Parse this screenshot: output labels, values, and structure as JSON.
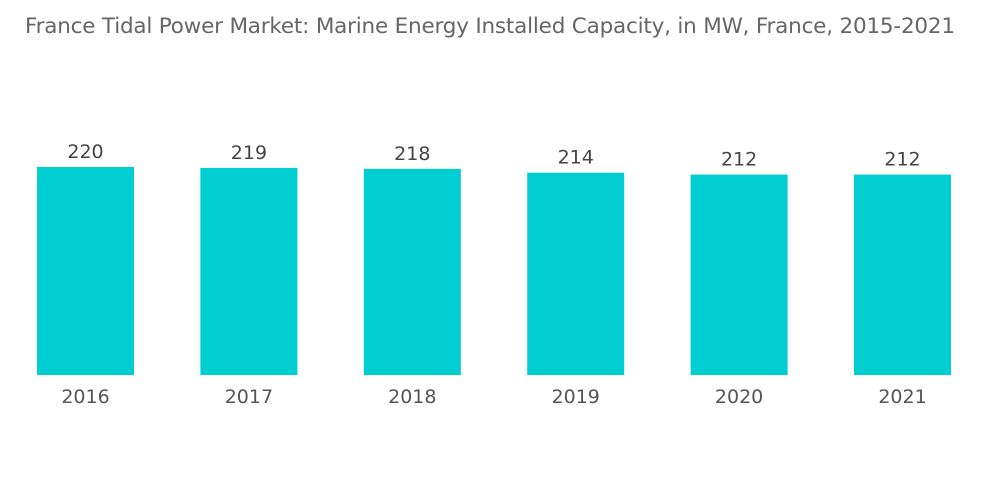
{
  "chart_data": {
    "type": "bar",
    "title": "France Tidal Power Market:  Marine Energy Installed Capacity, in MW, France, 2015-2021",
    "xlabel": "",
    "ylabel": "",
    "categories": [
      "2016",
      "2017",
      "2018",
      "2019",
      "2020",
      "2021"
    ],
    "values": [
      220,
      219,
      218,
      214,
      212,
      212
    ],
    "data_labels": [
      "220",
      "219",
      "218",
      "214",
      "212",
      "212"
    ],
    "ylim": [
      0,
      220
    ],
    "grid": false,
    "legend": "none",
    "bar_color": "#00CED1"
  }
}
